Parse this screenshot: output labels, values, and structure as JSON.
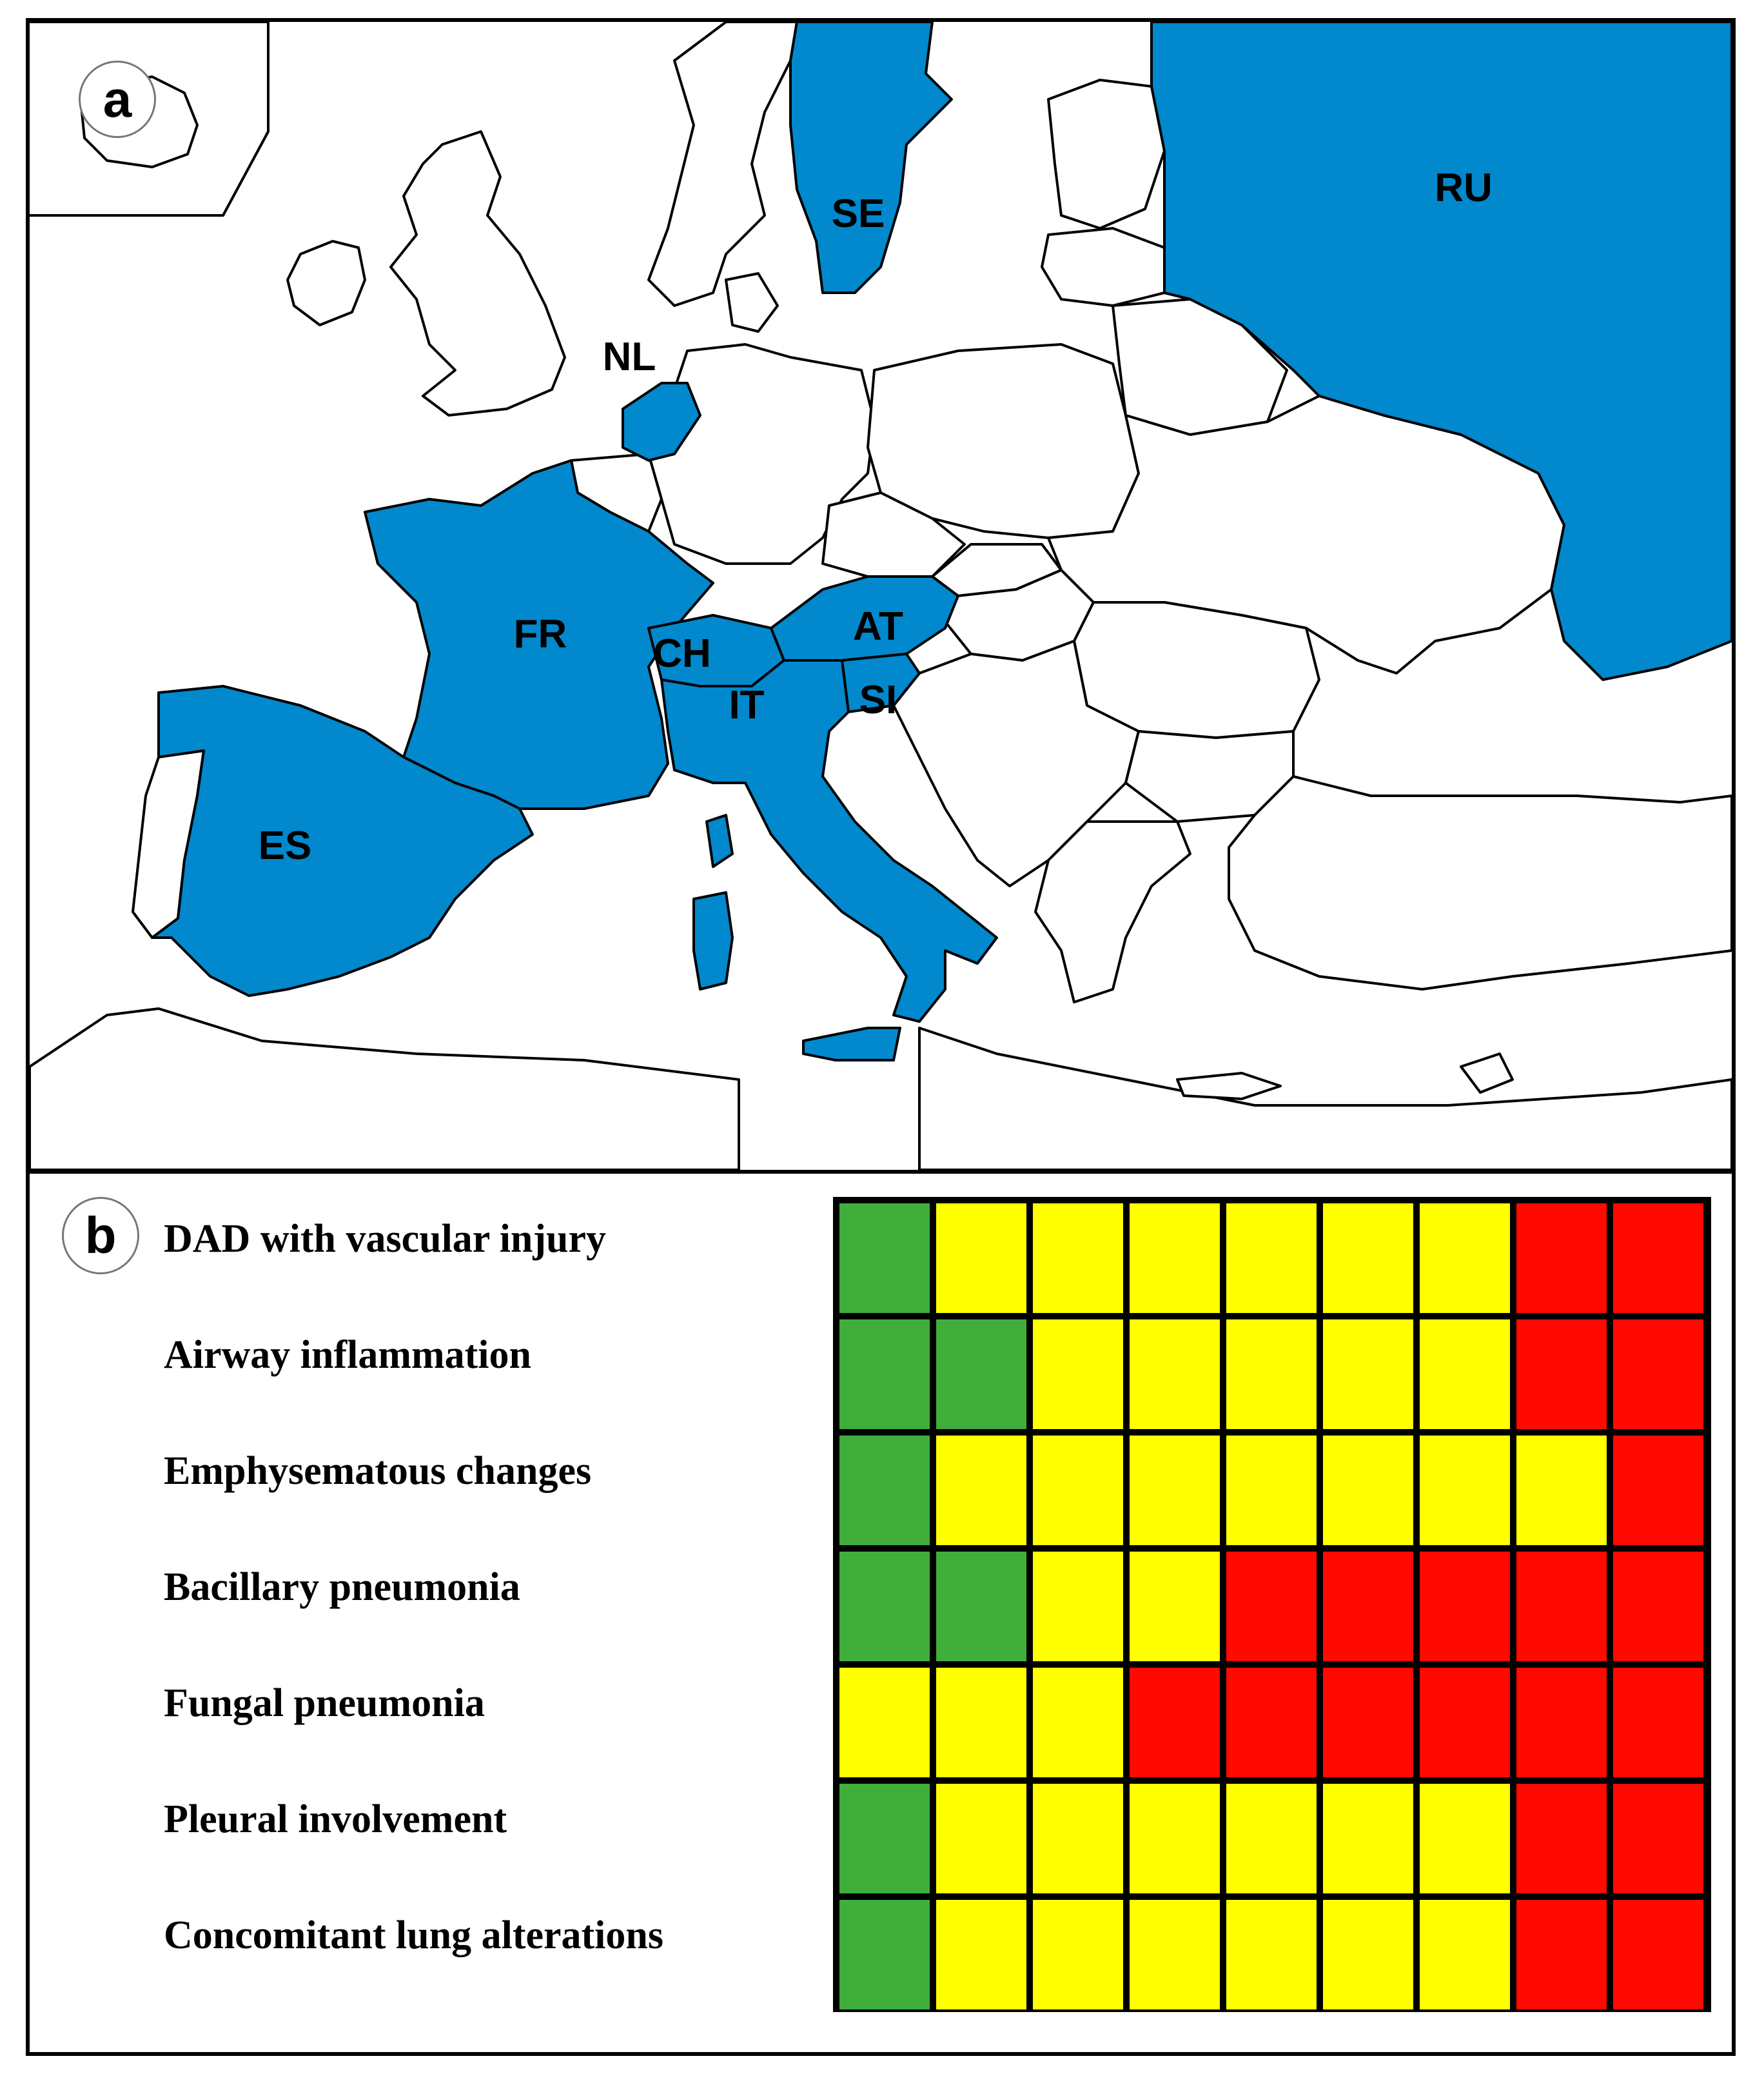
{
  "panels": {
    "a": {
      "letter": "a"
    },
    "b": {
      "letter": "b"
    }
  },
  "map": {
    "colors": {
      "highlight": "#0288cc",
      "land": "#ffffff",
      "border": "#000000",
      "sea": "#ffffff"
    },
    "highlighted_countries": [
      {
        "code": "SE",
        "label": "SE"
      },
      {
        "code": "RU",
        "label": "RU"
      },
      {
        "code": "NL",
        "label": "NL"
      },
      {
        "code": "FR",
        "label": "FR"
      },
      {
        "code": "CH",
        "label": "CH"
      },
      {
        "code": "AT",
        "label": "AT"
      },
      {
        "code": "SI",
        "label": "SI"
      },
      {
        "code": "IT",
        "label": "IT"
      },
      {
        "code": "ES",
        "label": "ES"
      }
    ]
  },
  "chart_data": {
    "type": "heatmap",
    "rows": [
      "DAD with vascular injury",
      "Airway inflammation",
      "Emphysematous changes",
      "Bacillary pneumonia",
      "Fungal pneumonia",
      "Pleural involvement",
      "Concomitant lung alterations"
    ],
    "colors": {
      "green": "#3fae3a",
      "yellow": "#ffff00",
      "red": "#ff0a00"
    },
    "cells": [
      [
        "green",
        "yellow",
        "yellow",
        "yellow",
        "yellow",
        "yellow",
        "yellow",
        "red",
        "red"
      ],
      [
        "green",
        "green",
        "yellow",
        "yellow",
        "yellow",
        "yellow",
        "yellow",
        "red",
        "red"
      ],
      [
        "green",
        "yellow",
        "yellow",
        "yellow",
        "yellow",
        "yellow",
        "yellow",
        "yellow",
        "red"
      ],
      [
        "green",
        "green",
        "yellow",
        "yellow",
        "red",
        "red",
        "red",
        "red",
        "red"
      ],
      [
        "yellow",
        "yellow",
        "yellow",
        "red",
        "red",
        "red",
        "red",
        "red",
        "red"
      ],
      [
        "green",
        "yellow",
        "yellow",
        "yellow",
        "yellow",
        "yellow",
        "yellow",
        "red",
        "red"
      ],
      [
        "green",
        "yellow",
        "yellow",
        "yellow",
        "yellow",
        "yellow",
        "yellow",
        "red",
        "red"
      ]
    ]
  }
}
